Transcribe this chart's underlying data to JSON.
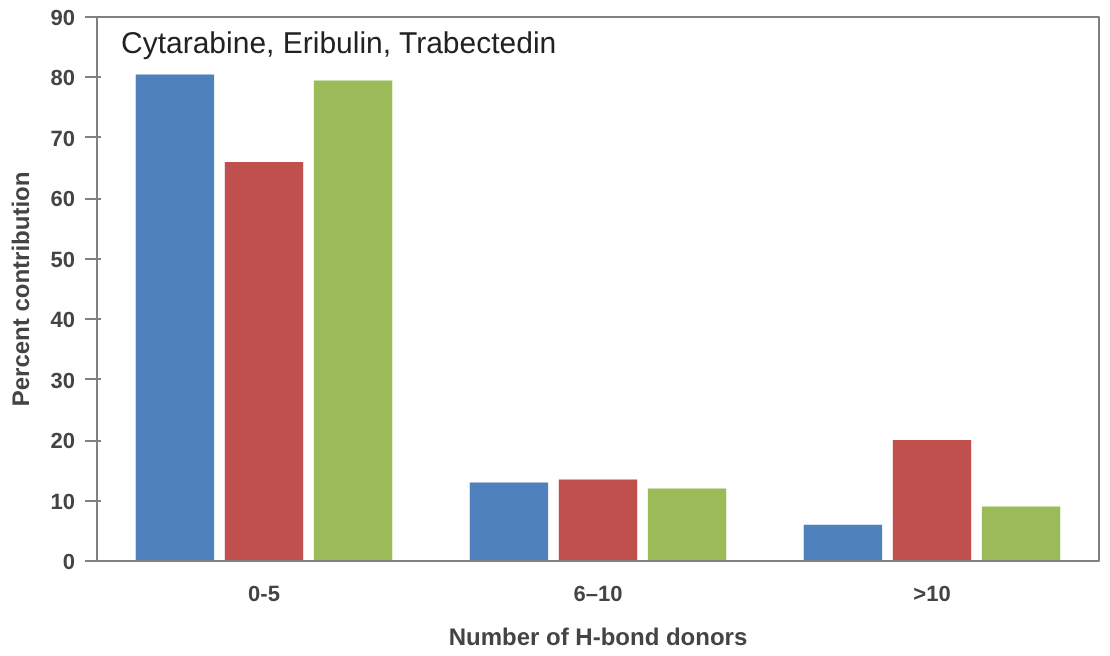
{
  "chart_data": {
    "type": "bar",
    "title": "Cytarabine, Eribulin, Trabectedin",
    "xlabel": "Number of H-bond donors",
    "ylabel": "Percent contribution",
    "categories": [
      "0-5",
      "6–10",
      ">10"
    ],
    "series": [
      {
        "color": "#4f81bd",
        "values": [
          80.5,
          13,
          6
        ]
      },
      {
        "color": "#c0504d",
        "values": [
          66,
          13.5,
          20
        ]
      },
      {
        "color": "#9bbb59",
        "values": [
          79.5,
          12,
          9
        ]
      }
    ],
    "ylim": [
      0,
      90
    ],
    "yticks": [
      0,
      10,
      20,
      30,
      40,
      50,
      60,
      70,
      80,
      90
    ],
    "grid": false
  }
}
